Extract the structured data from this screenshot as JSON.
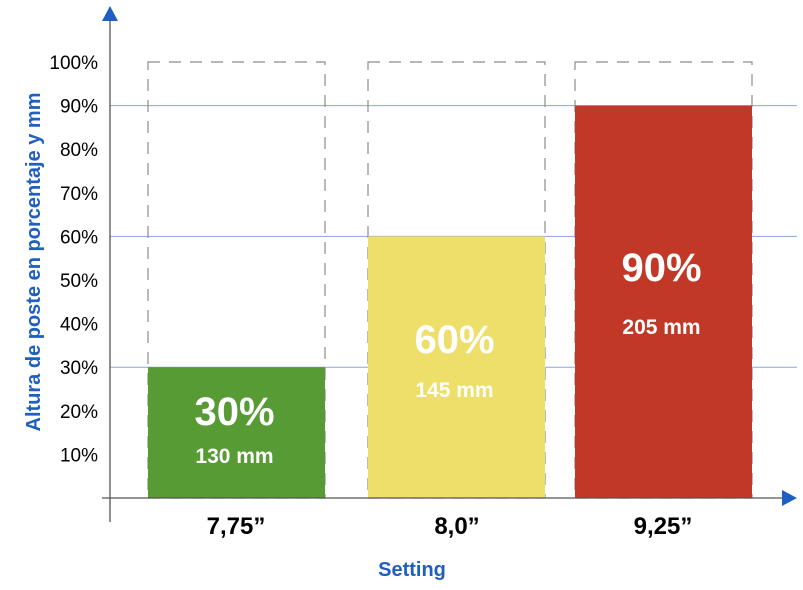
{
  "chart_data": {
    "type": "bar",
    "categories": [
      "7,75”",
      "8,0”",
      "9,25”"
    ],
    "values": [
      30,
      60,
      90
    ],
    "data_labels": [
      "30%",
      "60%",
      "90%"
    ],
    "secondary_labels": [
      "130 mm",
      "145 mm",
      "205 mm"
    ],
    "bar_colors": [
      "#569b34",
      "#eddf6a",
      "#c13826"
    ],
    "ytick_labels": [
      "10%",
      "20%",
      "30%",
      "40%",
      "50%",
      "60%",
      "70%",
      "80%",
      "90%",
      "100%"
    ],
    "ylim": [
      0,
      100
    ],
    "xlabel": "Setting",
    "ylabel": "Altura de poste en porcentaje y mm",
    "reference_max": 100,
    "grid": "horizontal lines at bar tops",
    "accent_color": "#1f5fbf",
    "grid_color": "#8aa7d6"
  }
}
